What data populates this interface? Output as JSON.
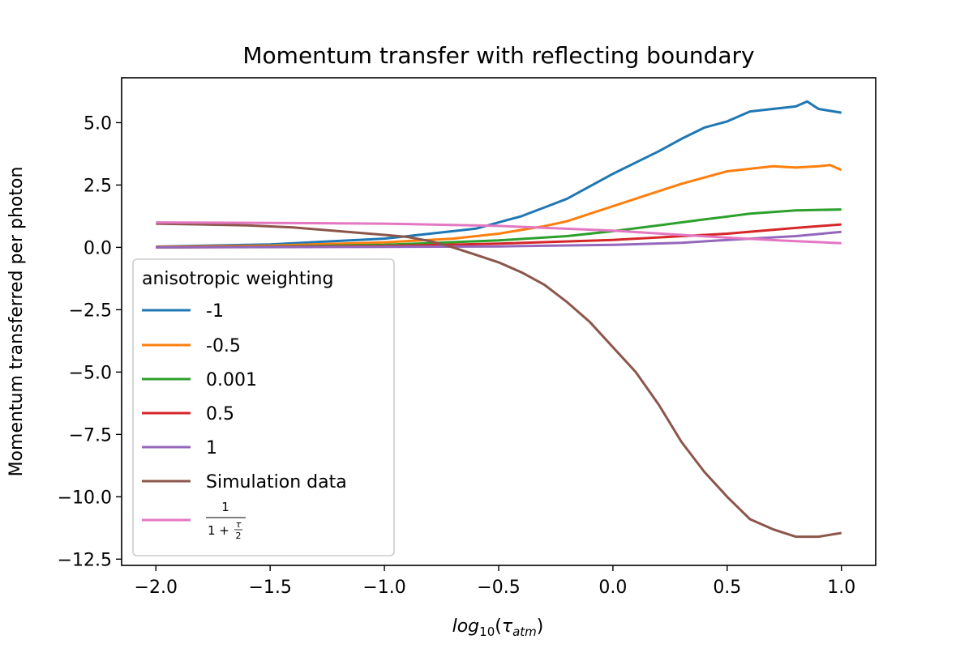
{
  "chart_data": {
    "type": "line",
    "title": "Momentum transfer with reflecting boundary",
    "xlabel": "log",
    "xlabel_sub": "10",
    "xlabel_arg_open": "(",
    "xlabel_tau": "τ",
    "xlabel_tau_sub": "atm",
    "xlabel_arg_close": ")",
    "ylabel": "Momentum transferred per photon",
    "xlim": [
      -2.15,
      1.15
    ],
    "ylim": [
      -12.75,
      6.8
    ],
    "xticks": [
      -2.0,
      -1.5,
      -1.0,
      -0.5,
      0.0,
      0.5,
      1.0
    ],
    "xtick_labels": [
      "−2.0",
      "−1.5",
      "−1.0",
      "−0.5",
      "0.0",
      "0.5",
      "1.0"
    ],
    "yticks": [
      5.0,
      2.5,
      0.0,
      -2.5,
      -5.0,
      -7.5,
      -10.0,
      -12.5
    ],
    "ytick_labels": [
      "5.0",
      "2.5",
      "0.0",
      "−2.5",
      "−5.0",
      "−7.5",
      "−10.0",
      "−12.5"
    ],
    "legend": {
      "title": "anisotropic weighting",
      "placement": "lower-left",
      "formula": {
        "numerator": "1",
        "den_left": "1 + ",
        "den_tau": "τ",
        "den_two": "2"
      }
    },
    "series": [
      {
        "name": "-1",
        "color": "#1f77b4",
        "x": [
          -2.0,
          -1.5,
          -1.0,
          -0.8,
          -0.6,
          -0.5,
          -0.4,
          -0.3,
          -0.2,
          -0.1,
          0.0,
          0.1,
          0.2,
          0.3,
          0.4,
          0.5,
          0.6,
          0.7,
          0.8,
          0.85,
          0.9,
          1.0
        ],
        "y": [
          0.03,
          0.12,
          0.35,
          0.55,
          0.75,
          1.0,
          1.25,
          1.6,
          1.95,
          2.45,
          2.95,
          3.4,
          3.85,
          4.35,
          4.8,
          5.05,
          5.45,
          5.55,
          5.65,
          5.85,
          5.55,
          5.4
        ]
      },
      {
        "name": "-0.5",
        "color": "#ff7f0e",
        "x": [
          -2.0,
          -1.5,
          -1.0,
          -0.7,
          -0.5,
          -0.3,
          -0.2,
          -0.1,
          0.0,
          0.1,
          0.2,
          0.3,
          0.4,
          0.5,
          0.6,
          0.7,
          0.8,
          0.9,
          0.95,
          1.0
        ],
        "y": [
          0.02,
          0.07,
          0.2,
          0.35,
          0.55,
          0.85,
          1.05,
          1.35,
          1.65,
          1.95,
          2.25,
          2.55,
          2.8,
          3.05,
          3.15,
          3.25,
          3.2,
          3.25,
          3.3,
          3.1
        ]
      },
      {
        "name": "0.001",
        "color": "#2ca02c",
        "x": [
          -2.0,
          -1.5,
          -1.0,
          -0.5,
          -0.2,
          0.0,
          0.2,
          0.4,
          0.6,
          0.8,
          1.0
        ],
        "y": [
          0.0,
          0.03,
          0.1,
          0.28,
          0.45,
          0.65,
          0.88,
          1.12,
          1.35,
          1.48,
          1.52
        ]
      },
      {
        "name": "0.5",
        "color": "#d62728",
        "x": [
          -2.0,
          -1.5,
          -1.0,
          -0.5,
          0.0,
          0.5,
          0.8,
          1.0
        ],
        "y": [
          0.0,
          0.02,
          0.05,
          0.15,
          0.3,
          0.55,
          0.78,
          0.92
        ]
      },
      {
        "name": "1",
        "color": "#9467bd",
        "x": [
          -2.0,
          -1.0,
          -0.5,
          0.0,
          0.3,
          0.5,
          0.8,
          1.0
        ],
        "y": [
          0.0,
          0.02,
          0.04,
          0.1,
          0.18,
          0.3,
          0.45,
          0.62
        ]
      },
      {
        "name": "Simulation data",
        "color": "#8c564b",
        "x": [
          -2.0,
          -1.8,
          -1.6,
          -1.4,
          -1.2,
          -1.0,
          -0.9,
          -0.8,
          -0.7,
          -0.6,
          -0.5,
          -0.4,
          -0.3,
          -0.2,
          -0.1,
          0.0,
          0.1,
          0.2,
          0.3,
          0.4,
          0.5,
          0.6,
          0.7,
          0.8,
          0.9,
          1.0
        ],
        "y": [
          0.95,
          0.92,
          0.88,
          0.8,
          0.65,
          0.5,
          0.42,
          0.25,
          0.0,
          -0.3,
          -0.6,
          -1.0,
          -1.5,
          -2.2,
          -3.0,
          -4.0,
          -5.0,
          -6.3,
          -7.8,
          -9.0,
          -10.0,
          -10.9,
          -11.3,
          -11.6,
          -11.6,
          -11.45
        ]
      },
      {
        "name": "",
        "color": "#e377c2",
        "x": [
          -2.0,
          -1.5,
          -1.0,
          -0.5,
          0.0,
          0.25,
          0.5,
          0.75,
          1.0
        ],
        "y": [
          1.0,
          0.98,
          0.95,
          0.86,
          0.67,
          0.53,
          0.39,
          0.27,
          0.17
        ]
      }
    ]
  }
}
